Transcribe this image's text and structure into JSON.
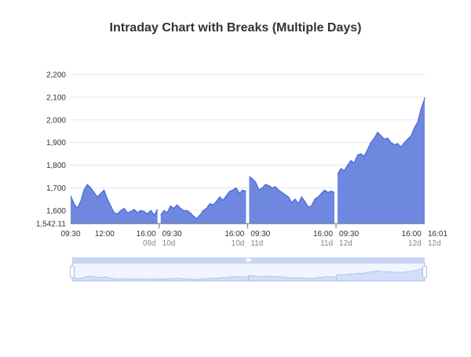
{
  "title": "Intraday Chart with Breaks (Multiple Days)",
  "chart_data": {
    "type": "area",
    "title": "Intraday Chart with Breaks (Multiple Days)",
    "xlabel": "",
    "ylabel": "",
    "ylim": [
      1542.11,
      2200
    ],
    "y_ticks": [
      "2,200",
      "2,100",
      "2,000",
      "1,900",
      "1,800",
      "1,700",
      "1,600",
      "1,542.11"
    ],
    "y_tick_values": [
      2200,
      2100,
      2000,
      1900,
      1800,
      1700,
      1600,
      1542.11
    ],
    "x_ticks": [
      {
        "time": "09:30",
        "day": "",
        "t": 0
      },
      {
        "time": "12:00",
        "day": "",
        "t": 150
      },
      {
        "time": "16:00",
        "day": "09d",
        "t": 390
      },
      {
        "time": "09:30",
        "day": "10d",
        "t": 390
      },
      {
        "time": "16:00",
        "day": "10d",
        "t": 780
      },
      {
        "time": "09:30",
        "day": "11d",
        "t": 780
      },
      {
        "time": "16:00",
        "day": "11d",
        "t": 1170
      },
      {
        "time": "09:30",
        "day": "12d",
        "t": 1170
      },
      {
        "time": "16:00",
        "day": "12d",
        "t": 1560
      },
      {
        "time": "16:01",
        "day": "12d",
        "t": 1561
      }
    ],
    "grid": true,
    "legend": "none",
    "colors": {
      "fill": "#6e88e0",
      "line": "#4866d6",
      "grid": "#e0e6f1",
      "slider_fill": "#dde6fa",
      "slider_border": "#aab8dd"
    },
    "series": [
      {
        "day": "09d",
        "points": [
          [
            0,
            1665
          ],
          [
            15,
            1630
          ],
          [
            30,
            1610
          ],
          [
            45,
            1640
          ],
          [
            60,
            1690
          ],
          [
            75,
            1715
          ],
          [
            90,
            1700
          ],
          [
            105,
            1680
          ],
          [
            120,
            1660
          ],
          [
            135,
            1675
          ],
          [
            150,
            1690
          ],
          [
            165,
            1650
          ],
          [
            180,
            1620
          ],
          [
            195,
            1590
          ],
          [
            210,
            1585
          ],
          [
            225,
            1600
          ],
          [
            240,
            1610
          ],
          [
            255,
            1590
          ],
          [
            270,
            1595
          ],
          [
            285,
            1605
          ],
          [
            300,
            1590
          ],
          [
            315,
            1600
          ],
          [
            330,
            1595
          ],
          [
            345,
            1585
          ],
          [
            360,
            1600
          ],
          [
            375,
            1580
          ],
          [
            390,
            1605
          ]
        ]
      },
      {
        "day": "10d",
        "points": [
          [
            390,
            1580
          ],
          [
            405,
            1600
          ],
          [
            420,
            1590
          ],
          [
            435,
            1620
          ],
          [
            450,
            1610
          ],
          [
            465,
            1625
          ],
          [
            480,
            1610
          ],
          [
            495,
            1600
          ],
          [
            510,
            1600
          ],
          [
            525,
            1590
          ],
          [
            540,
            1575
          ],
          [
            555,
            1565
          ],
          [
            570,
            1580
          ],
          [
            585,
            1600
          ],
          [
            600,
            1610
          ],
          [
            615,
            1630
          ],
          [
            630,
            1625
          ],
          [
            645,
            1640
          ],
          [
            660,
            1660
          ],
          [
            675,
            1645
          ],
          [
            690,
            1665
          ],
          [
            705,
            1685
          ],
          [
            720,
            1690
          ],
          [
            735,
            1700
          ],
          [
            750,
            1675
          ],
          [
            765,
            1690
          ],
          [
            780,
            1685
          ]
        ]
      },
      {
        "day": "11d",
        "points": [
          [
            780,
            1750
          ],
          [
            795,
            1740
          ],
          [
            810,
            1725
          ],
          [
            825,
            1690
          ],
          [
            840,
            1700
          ],
          [
            855,
            1715
          ],
          [
            870,
            1710
          ],
          [
            885,
            1700
          ],
          [
            900,
            1705
          ],
          [
            915,
            1690
          ],
          [
            930,
            1680
          ],
          [
            945,
            1670
          ],
          [
            960,
            1660
          ],
          [
            975,
            1635
          ],
          [
            990,
            1650
          ],
          [
            1005,
            1630
          ],
          [
            1020,
            1660
          ],
          [
            1035,
            1640
          ],
          [
            1050,
            1615
          ],
          [
            1065,
            1620
          ],
          [
            1080,
            1650
          ],
          [
            1095,
            1660
          ],
          [
            1110,
            1675
          ],
          [
            1125,
            1690
          ],
          [
            1140,
            1680
          ],
          [
            1155,
            1685
          ],
          [
            1170,
            1680
          ]
        ]
      },
      {
        "day": "12d",
        "points": [
          [
            1170,
            1760
          ],
          [
            1185,
            1785
          ],
          [
            1200,
            1775
          ],
          [
            1215,
            1800
          ],
          [
            1230,
            1820
          ],
          [
            1245,
            1810
          ],
          [
            1260,
            1845
          ],
          [
            1275,
            1850
          ],
          [
            1290,
            1840
          ],
          [
            1305,
            1870
          ],
          [
            1320,
            1900
          ],
          [
            1335,
            1920
          ],
          [
            1350,
            1945
          ],
          [
            1365,
            1930
          ],
          [
            1380,
            1915
          ],
          [
            1395,
            1920
          ],
          [
            1410,
            1900
          ],
          [
            1425,
            1890
          ],
          [
            1440,
            1895
          ],
          [
            1455,
            1880
          ],
          [
            1470,
            1900
          ],
          [
            1485,
            1915
          ],
          [
            1500,
            1930
          ],
          [
            1515,
            1965
          ],
          [
            1530,
            1990
          ],
          [
            1545,
            2050
          ],
          [
            1560,
            2090
          ],
          [
            1561,
            2100
          ]
        ]
      }
    ]
  }
}
